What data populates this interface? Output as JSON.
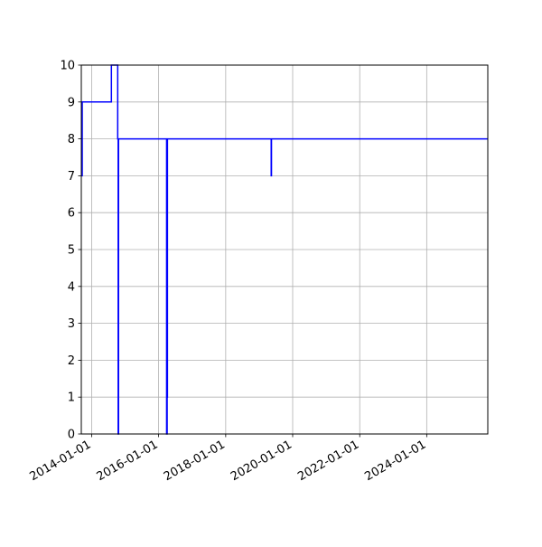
{
  "chart_data": {
    "type": "line",
    "drawstyle": "steps-post",
    "title": "",
    "xlabel": "",
    "ylabel": "",
    "xlim": [
      "2013-09-10",
      "2025-10-28"
    ],
    "ylim": [
      0,
      10
    ],
    "grid": true,
    "line_color": "#0000ff",
    "x_ticks": [
      "2014-01-01",
      "2016-01-01",
      "2018-01-01",
      "2020-01-01",
      "2022-01-01",
      "2024-01-01"
    ],
    "y_ticks": [
      "0",
      "1",
      "2",
      "3",
      "4",
      "5",
      "6",
      "7",
      "8",
      "9",
      "10"
    ],
    "series": [
      {
        "points": [
          [
            "2013-09-13",
            7
          ],
          [
            "2013-09-20",
            9
          ],
          [
            "2014-08-04",
            10
          ],
          [
            "2014-10-12",
            8
          ],
          [
            "2014-10-17",
            0
          ],
          [
            "2014-10-21",
            8
          ],
          [
            "2016-03-28",
            0
          ],
          [
            "2016-04-03",
            1
          ],
          [
            "2016-04-06",
            8
          ],
          [
            "2019-05-12",
            7
          ],
          [
            "2019-05-15",
            8
          ],
          [
            "2025-10-28",
            8
          ]
        ]
      }
    ]
  }
}
